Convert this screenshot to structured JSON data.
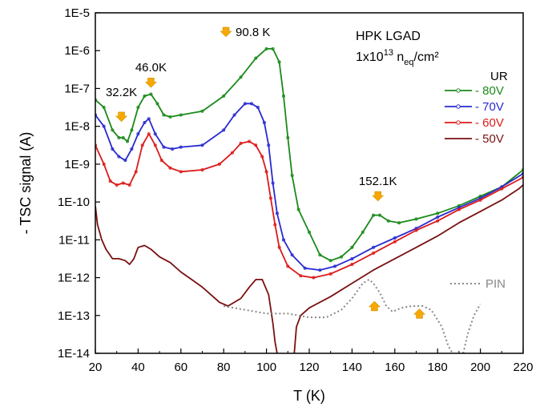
{
  "chart_data": {
    "type": "line",
    "xlabel": "T (K)",
    "ylabel": "- TSC signal (A)",
    "xlim": [
      20,
      220
    ],
    "ylim_log10": [
      -14,
      -5
    ],
    "yscale": "log",
    "x_ticks": [
      20,
      40,
      60,
      80,
      100,
      120,
      140,
      160,
      180,
      200,
      220
    ],
    "y_ticks": [
      {
        "exp": -5,
        "label": "1E-5"
      },
      {
        "exp": -6,
        "label": "1E-6"
      },
      {
        "exp": -7,
        "label": "1E-7"
      },
      {
        "exp": -8,
        "label": "1E-8"
      },
      {
        "exp": -9,
        "label": "1E-9"
      },
      {
        "exp": -10,
        "label": "1E-10"
      },
      {
        "exp": -11,
        "label": "1E-11"
      },
      {
        "exp": -12,
        "label": "1E-12"
      },
      {
        "exp": -13,
        "label": "1E-13"
      },
      {
        "exp": -14,
        "label": "1E-14"
      }
    ],
    "device_label": "HPK LGAD",
    "fluence_label": {
      "base": "1x10",
      "sup": "13",
      "mid": " n",
      "sub": "eq",
      "tail": "/cm²"
    },
    "legend_title": "UR",
    "grid": false,
    "legend_position": "right",
    "series": [
      {
        "name": "- 80V",
        "color": "#1a8a1a",
        "style": "solid-marker",
        "points": [
          [
            20,
            -7.3
          ],
          [
            24,
            -7.5
          ],
          [
            28,
            -8.1
          ],
          [
            31,
            -8.3
          ],
          [
            33,
            -8.3
          ],
          [
            35,
            -8.4
          ],
          [
            37,
            -8.1
          ],
          [
            40,
            -7.5
          ],
          [
            43,
            -7.2
          ],
          [
            46,
            -7.15
          ],
          [
            49,
            -7.4
          ],
          [
            52,
            -7.7
          ],
          [
            55,
            -7.75
          ],
          [
            60,
            -7.7
          ],
          [
            70,
            -7.6
          ],
          [
            80,
            -7.2
          ],
          [
            88,
            -6.7
          ],
          [
            95,
            -6.2
          ],
          [
            100,
            -5.95
          ],
          [
            103,
            -5.95
          ],
          [
            106,
            -6.3
          ],
          [
            108,
            -7.2
          ],
          [
            110,
            -8.3
          ],
          [
            112,
            -9.3
          ],
          [
            115,
            -10.2
          ],
          [
            120,
            -10.8
          ],
          [
            125,
            -11.4
          ],
          [
            130,
            -11.55
          ],
          [
            135,
            -11.45
          ],
          [
            140,
            -11.2
          ],
          [
            145,
            -10.8
          ],
          [
            150,
            -10.35
          ],
          [
            153,
            -10.35
          ],
          [
            157,
            -10.5
          ],
          [
            162,
            -10.55
          ],
          [
            170,
            -10.45
          ],
          [
            180,
            -10.3
          ],
          [
            190,
            -10.1
          ],
          [
            200,
            -9.85
          ],
          [
            210,
            -9.6
          ],
          [
            220,
            -9.15
          ]
        ]
      },
      {
        "name": "- 70V",
        "color": "#2a2ad0",
        "style": "solid-marker",
        "points": [
          [
            20,
            -7.7
          ],
          [
            24,
            -8.0
          ],
          [
            28,
            -8.6
          ],
          [
            31,
            -8.8
          ],
          [
            34,
            -8.9
          ],
          [
            37,
            -8.6
          ],
          [
            40,
            -8.2
          ],
          [
            43,
            -7.9
          ],
          [
            45,
            -7.8
          ],
          [
            48,
            -8.2
          ],
          [
            52,
            -8.55
          ],
          [
            56,
            -8.6
          ],
          [
            60,
            -8.55
          ],
          [
            70,
            -8.5
          ],
          [
            80,
            -8.1
          ],
          [
            85,
            -7.7
          ],
          [
            90,
            -7.4
          ],
          [
            93,
            -7.4
          ],
          [
            96,
            -7.5
          ],
          [
            99,
            -7.9
          ],
          [
            101,
            -8.5
          ],
          [
            103,
            -9.5
          ],
          [
            105,
            -10.3
          ],
          [
            108,
            -11.0
          ],
          [
            112,
            -11.4
          ],
          [
            118,
            -11.75
          ],
          [
            125,
            -11.8
          ],
          [
            132,
            -11.7
          ],
          [
            140,
            -11.5
          ],
          [
            150,
            -11.2
          ],
          [
            160,
            -10.95
          ],
          [
            170,
            -10.7
          ],
          [
            180,
            -10.4
          ],
          [
            190,
            -10.15
          ],
          [
            200,
            -9.9
          ],
          [
            210,
            -9.6
          ],
          [
            220,
            -9.25
          ]
        ]
      },
      {
        "name": "- 60V",
        "color": "#dd1a1a",
        "style": "solid-marker",
        "points": [
          [
            20,
            -8.5
          ],
          [
            24,
            -9.0
          ],
          [
            27,
            -9.45
          ],
          [
            30,
            -9.55
          ],
          [
            33,
            -9.5
          ],
          [
            36,
            -9.55
          ],
          [
            39,
            -9.2
          ],
          [
            42,
            -8.5
          ],
          [
            45,
            -8.2
          ],
          [
            48,
            -8.5
          ],
          [
            51,
            -8.9
          ],
          [
            55,
            -9.1
          ],
          [
            60,
            -9.2
          ],
          [
            70,
            -9.15
          ],
          [
            78,
            -9.0
          ],
          [
            84,
            -8.7
          ],
          [
            88,
            -8.45
          ],
          [
            92,
            -8.4
          ],
          [
            95,
            -8.5
          ],
          [
            98,
            -8.8
          ],
          [
            100,
            -9.2
          ],
          [
            102,
            -9.9
          ],
          [
            104,
            -10.6
          ],
          [
            106,
            -11.2
          ],
          [
            110,
            -11.7
          ],
          [
            116,
            -11.95
          ],
          [
            122,
            -12.0
          ],
          [
            130,
            -11.9
          ],
          [
            140,
            -11.65
          ],
          [
            150,
            -11.35
          ],
          [
            160,
            -11.05
          ],
          [
            170,
            -10.75
          ],
          [
            180,
            -10.5
          ],
          [
            190,
            -10.2
          ],
          [
            200,
            -9.95
          ],
          [
            210,
            -9.65
          ],
          [
            220,
            -9.35
          ]
        ]
      },
      {
        "name": "- 50V",
        "color": "#7a1010",
        "style": "solid",
        "points": [
          [
            20,
            -10.1
          ],
          [
            21,
            -10.6
          ],
          [
            23,
            -11.0
          ],
          [
            25,
            -11.25
          ],
          [
            28,
            -11.5
          ],
          [
            31,
            -11.5
          ],
          [
            34,
            -11.55
          ],
          [
            36,
            -11.65
          ],
          [
            38,
            -11.5
          ],
          [
            40,
            -11.2
          ],
          [
            43,
            -11.15
          ],
          [
            46,
            -11.25
          ],
          [
            50,
            -11.45
          ],
          [
            55,
            -11.6
          ],
          [
            60,
            -11.85
          ],
          [
            65,
            -12.05
          ],
          [
            70,
            -12.25
          ],
          [
            75,
            -12.5
          ],
          [
            78,
            -12.65
          ],
          [
            82,
            -12.75
          ],
          [
            88,
            -12.55
          ],
          [
            92,
            -12.25
          ],
          [
            95,
            -12.05
          ],
          [
            98,
            -12.05
          ],
          [
            101,
            -12.45
          ],
          [
            103,
            -13.2
          ],
          [
            104,
            -13.7
          ],
          [
            105,
            -14.0
          ]
        ]
      },
      {
        "name": "- 50V (cont.)",
        "color": "#7a1010",
        "style": "solid",
        "points": [
          [
            113,
            -14.0
          ],
          [
            114,
            -13.3
          ],
          [
            116,
            -13.0
          ],
          [
            120,
            -12.8
          ],
          [
            130,
            -12.5
          ],
          [
            140,
            -12.15
          ],
          [
            150,
            -11.8
          ],
          [
            160,
            -11.5
          ],
          [
            170,
            -11.2
          ],
          [
            180,
            -10.9
          ],
          [
            190,
            -10.55
          ],
          [
            200,
            -10.25
          ],
          [
            210,
            -9.95
          ],
          [
            218,
            -9.65
          ],
          [
            220,
            -9.55
          ]
        ]
      },
      {
        "name": "PIN",
        "color": "#888888",
        "style": "dotted",
        "points": [
          [
            80,
            -12.75
          ],
          [
            90,
            -12.85
          ],
          [
            100,
            -12.95
          ],
          [
            110,
            -12.95
          ],
          [
            120,
            -13.05
          ],
          [
            128,
            -13.05
          ],
          [
            135,
            -12.85
          ],
          [
            140,
            -12.55
          ],
          [
            145,
            -12.15
          ],
          [
            148,
            -12.05
          ],
          [
            150,
            -12.15
          ],
          [
            153,
            -12.4
          ],
          [
            156,
            -12.75
          ],
          [
            159,
            -12.9
          ],
          [
            163,
            -12.8
          ],
          [
            168,
            -12.75
          ],
          [
            173,
            -12.75
          ],
          [
            177,
            -12.85
          ],
          [
            182,
            -13.3
          ],
          [
            185,
            -13.8
          ],
          [
            187,
            -14.0
          ]
        ]
      },
      {
        "name": "PIN (cont.)",
        "color": "#888888",
        "style": "dotted",
        "points": [
          [
            192,
            -14.0
          ],
          [
            194,
            -13.5
          ],
          [
            197,
            -13.0
          ],
          [
            200,
            -12.7
          ]
        ]
      }
    ],
    "annotations": [
      {
        "text": "32.2K",
        "x": 32.2,
        "label_y": -7.2,
        "arrow_y": -7.75
      },
      {
        "text": "46.0K",
        "x": 46.0,
        "label_y": -6.55,
        "arrow_y": -6.85
      },
      {
        "text": "90.8 K",
        "x": 90.8,
        "label_y": -5.55,
        "arrow_y": -5.55,
        "arrow_left": true
      },
      {
        "text": "152.1K",
        "x": 152.1,
        "label_y": -9.55,
        "arrow_y": -9.85
      }
    ],
    "pin_arrows": [
      {
        "x": 150.5,
        "y": -12.75
      },
      {
        "x": 171.5,
        "y": -12.95
      }
    ],
    "pin_label": "PIN",
    "arrow_color": "#f5a800"
  }
}
